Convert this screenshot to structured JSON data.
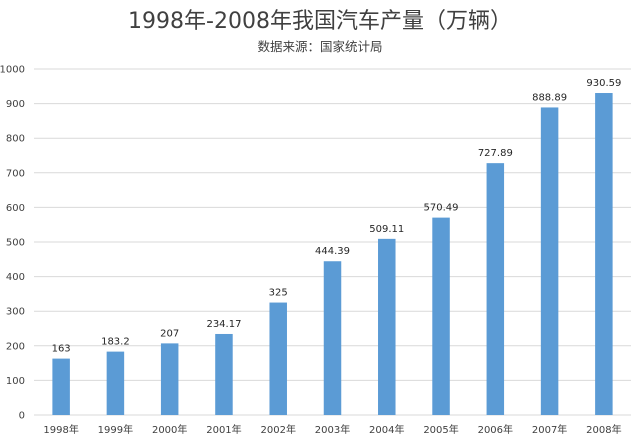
{
  "chart_data": {
    "type": "bar",
    "title": "1998年-2008年我国汽车产量（万辆）",
    "subtitle": "数据来源：国家统计局",
    "categories": [
      "1998年",
      "1999年",
      "2000年",
      "2001年",
      "2002年",
      "2003年",
      "2004年",
      "2005年",
      "2006年",
      "2007年",
      "2008年"
    ],
    "values": [
      163,
      183.2,
      207,
      234.17,
      325,
      444.39,
      509.11,
      570.49,
      727.89,
      888.89,
      930.59
    ],
    "value_labels": [
      "163",
      "183.2",
      "207",
      "234.17",
      "325",
      "444.39",
      "509.11",
      "570.49",
      "727.89",
      "888.89",
      "930.59"
    ],
    "y_ticks": [
      "0",
      "100",
      "200",
      "300",
      "400",
      "500",
      "600",
      "700",
      "800",
      "900",
      "1000"
    ],
    "ylim": [
      0,
      1000
    ],
    "xlabel": "",
    "ylabel": "",
    "grid": true,
    "legend": "none",
    "bar_color": "#5b9bd5"
  }
}
